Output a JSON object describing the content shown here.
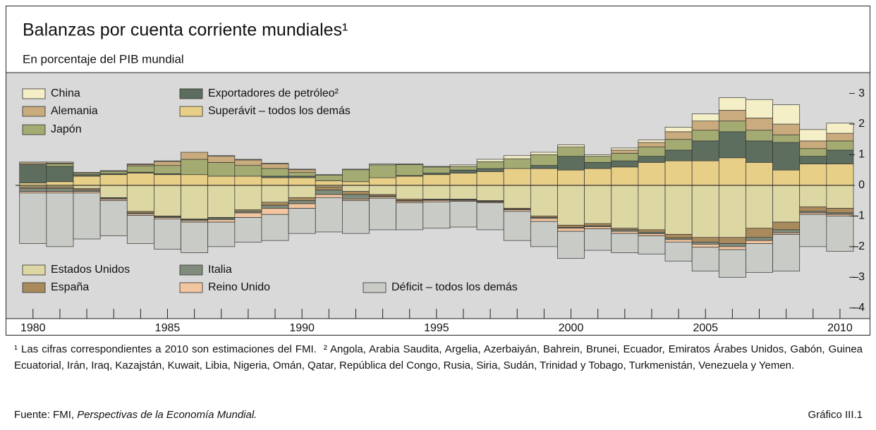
{
  "chart_data": {
    "type": "stacked_bar",
    "title": "Balanzas por cuenta corriente mundiales¹",
    "subtitle": "En porcentaje del PIB mundial",
    "x": [
      1980,
      1981,
      1982,
      1983,
      1984,
      1985,
      1986,
      1987,
      1988,
      1989,
      1990,
      1991,
      1992,
      1993,
      1994,
      1995,
      1996,
      1997,
      1998,
      1999,
      2000,
      2001,
      2002,
      2003,
      2004,
      2005,
      2006,
      2007,
      2008,
      2009,
      2010
    ],
    "xlim": [
      1979.35,
      2010.5
    ],
    "xticks": [
      1980,
      1985,
      1990,
      1995,
      2000,
      2005,
      2010
    ],
    "ylim": [
      -4.35,
      3.45
    ],
    "yticks": [
      3,
      2,
      1,
      0,
      {
        "value": -1,
        "label": "–1"
      },
      {
        "value": -2,
        "label": "–2"
      },
      {
        "value": -3,
        "label": "–3"
      },
      {
        "value": -4,
        "label": "–4"
      }
    ],
    "series": [
      {
        "name": "Superávit – todos los demás",
        "color": "#e8cf88",
        "values": [
          0.08,
          0.12,
          0.3,
          0.35,
          0.4,
          0.35,
          0.35,
          0.3,
          0.3,
          0.25,
          0.25,
          0.15,
          0.12,
          0.25,
          0.3,
          0.35,
          0.4,
          0.45,
          0.55,
          0.55,
          0.5,
          0.55,
          0.6,
          0.75,
          0.8,
          0.8,
          0.9,
          0.75,
          0.5,
          0.7,
          0.7
        ]
      },
      {
        "name": "Exportadores de petróleo²",
        "color": "#5d6e5f",
        "values": [
          0.6,
          0.5,
          0.05,
          0.03,
          0.03,
          0.03,
          0,
          0,
          0,
          0.05,
          0.05,
          0,
          0,
          0,
          0.02,
          0.05,
          0.1,
          0.1,
          0,
          0.1,
          0.45,
          0.2,
          0.2,
          0.2,
          0.35,
          0.65,
          0.85,
          0.7,
          0.9,
          0.25,
          0.45
        ]
      },
      {
        "name": "Japón",
        "color": "#a3ab72",
        "values": [
          0,
          0.08,
          0.05,
          0.08,
          0.2,
          0.27,
          0.5,
          0.45,
          0.35,
          0.25,
          0.12,
          0.18,
          0.39,
          0.42,
          0.36,
          0.2,
          0.12,
          0.22,
          0.32,
          0.35,
          0.3,
          0.2,
          0.25,
          0.3,
          0.35,
          0.35,
          0.35,
          0.35,
          0.25,
          0.25,
          0.3
        ]
      },
      {
        "name": "Alemania",
        "color": "#c9ab7d",
        "values": [
          0.05,
          0.03,
          0.02,
          0.02,
          0.05,
          0.13,
          0.23,
          0.2,
          0.18,
          0.15,
          0.09,
          0,
          0,
          0,
          0,
          0,
          0,
          0,
          0,
          0,
          0,
          0,
          0.1,
          0.15,
          0.25,
          0.3,
          0.35,
          0.4,
          0.35,
          0.25,
          0.25
        ]
      },
      {
        "name": "China",
        "color": "#f5efc8",
        "values": [
          0.03,
          0.03,
          0,
          0,
          0.02,
          0.02,
          0,
          0.02,
          0.02,
          0.02,
          0.02,
          0.02,
          0.02,
          0.03,
          0.02,
          0.02,
          0.05,
          0.08,
          0.1,
          0.08,
          0.07,
          0.05,
          0.07,
          0.08,
          0.15,
          0.23,
          0.41,
          0.6,
          0.63,
          0.37,
          0.33
        ]
      },
      {
        "name": "Estados Unidos",
        "color": "#ddd7a4",
        "values": [
          -0.05,
          -0.05,
          -0.1,
          -0.4,
          -0.85,
          -1.0,
          -1.1,
          -1.05,
          -0.8,
          -0.55,
          -0.4,
          -0.05,
          -0.2,
          -0.3,
          -0.45,
          -0.45,
          -0.45,
          -0.5,
          -0.75,
          -1.0,
          -1.3,
          -1.25,
          -1.4,
          -1.45,
          -1.6,
          -1.7,
          -1.7,
          -1.4,
          -1.2,
          -0.7,
          -0.75
        ]
      },
      {
        "name": "España",
        "color": "#a98a5c",
        "values": [
          -0.05,
          -0.05,
          -0.05,
          -0.02,
          -0.05,
          -0.02,
          -0.02,
          -0.02,
          -0.05,
          -0.1,
          -0.1,
          -0.1,
          -0.1,
          -0.05,
          -0.05,
          -0.02,
          -0.02,
          -0.02,
          -0.03,
          -0.05,
          -0.07,
          -0.07,
          -0.05,
          -0.08,
          -0.12,
          -0.15,
          -0.2,
          -0.3,
          -0.25,
          -0.15,
          -0.15
        ]
      },
      {
        "name": "Italia",
        "color": "#7f8c7c",
        "values": [
          -0.1,
          -0.1,
          -0.05,
          -0.03,
          -0.03,
          -0.03,
          -0.03,
          -0.05,
          -0.05,
          -0.1,
          -0.1,
          -0.15,
          -0.15,
          -0.02,
          -0.02,
          -0.02,
          -0.02,
          -0.02,
          -0.02,
          -0.03,
          -0.03,
          -0.03,
          -0.05,
          -0.05,
          -0.05,
          -0.07,
          -0.1,
          -0.1,
          -0.1,
          -0.05,
          -0.05
        ]
      },
      {
        "name": "Reino Unido",
        "color": "#f0c5a0",
        "values": [
          -0.05,
          -0.05,
          -0.05,
          -0.05,
          -0.05,
          -0.05,
          -0.05,
          -0.08,
          -0.15,
          -0.2,
          -0.15,
          -0.1,
          -0.05,
          -0.05,
          -0.05,
          -0.05,
          -0.03,
          -0.03,
          -0.05,
          -0.1,
          -0.1,
          -0.07,
          -0.07,
          -0.07,
          -0.08,
          -0.1,
          -0.1,
          -0.1,
          -0.05,
          -0.05,
          -0.05
        ]
      },
      {
        "name": "Déficit – todos los demás",
        "color": "#c8cbc6",
        "values": [
          -1.65,
          -1.75,
          -1.5,
          -1.15,
          -0.92,
          -0.98,
          -1.0,
          -0.8,
          -0.8,
          -0.85,
          -0.82,
          -1.12,
          -1.07,
          -1.03,
          -0.88,
          -0.86,
          -0.84,
          -0.88,
          -0.95,
          -0.82,
          -0.88,
          -0.7,
          -0.63,
          -0.59,
          -0.62,
          -0.78,
          -0.9,
          -0.94,
          -1.2,
          -1.05,
          -1.15
        ]
      }
    ],
    "notes": [
      "¹ Las cifras correspondientes a 2010 son estimaciones del FMI.",
      "² Angola, Arabia Saudita, Argelia, Azerbaiyán, Bahrein, Brunei, Ecuador, Emiratos Árabes Unidos, Gabón, Guinea Ecuatorial, Irán, Iraq, Kazajstán, Kuwait, Libia, Nigeria, Omán, Qatar, República del Congo, Rusia, Siria, Sudán, Trinidad y Tobago, Turkmenistán, Venezuela y Yemen."
    ],
    "source_prefix": "Fuente: FMI,",
    "source_title": "Perspectivas de la Economía Mundial.",
    "chart_id": "Gráfico III.1"
  }
}
